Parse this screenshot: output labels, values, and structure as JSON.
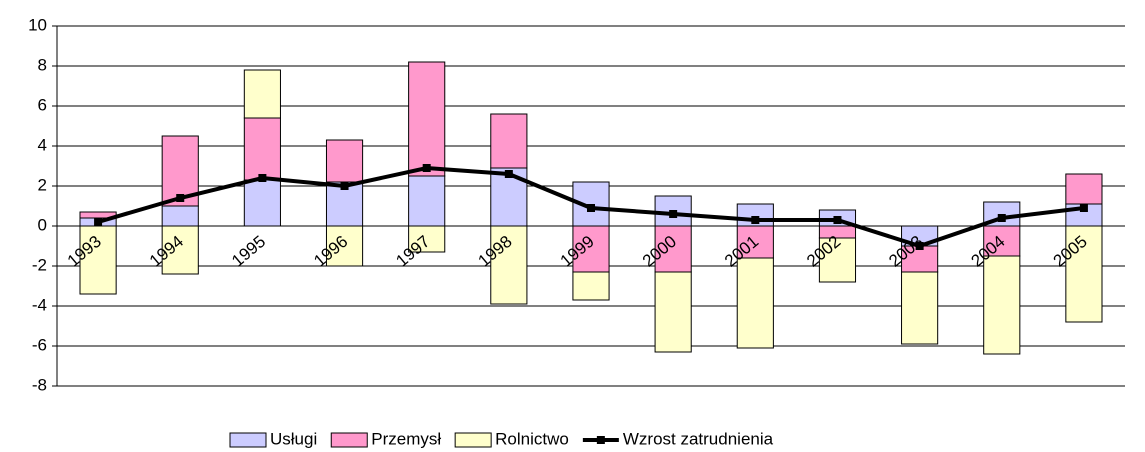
{
  "chart_data": {
    "type": "stacked_bar_line",
    "categories": [
      "1993",
      "1994",
      "1995",
      "1996",
      "1997",
      "1998",
      "1999",
      "2000",
      "2001",
      "2002",
      "2003",
      "2004",
      "2005"
    ],
    "series": [
      {
        "name": "Usługi",
        "color": "#ccccff",
        "values": [
          0.4,
          1.0,
          2.3,
          2.2,
          2.5,
          2.9,
          2.2,
          1.5,
          1.1,
          0.8,
          -1.0,
          1.2,
          1.1
        ]
      },
      {
        "name": "Przemysł",
        "color": "#ff99cc",
        "values": [
          0.3,
          3.5,
          3.1,
          2.1,
          5.7,
          2.7,
          -2.3,
          -2.3,
          -1.6,
          -0.6,
          -1.3,
          -1.5,
          1.5
        ]
      },
      {
        "name": "Rolnictwo",
        "color": "#ffffcc",
        "values": [
          -3.4,
          -2.4,
          2.4,
          -2.0,
          -1.3,
          -3.9,
          -1.4,
          -4.0,
          -4.5,
          -2.2,
          -3.6,
          -4.9,
          -4.8
        ]
      },
      {
        "name": "Wzrost zatrudnienia",
        "color": "#000000",
        "type": "line",
        "values": [
          0.2,
          1.4,
          2.4,
          2.0,
          2.9,
          2.6,
          0.9,
          0.6,
          0.3,
          0.3,
          -1.0,
          0.4,
          0.9
        ]
      }
    ],
    "ylim": [
      -8,
      10
    ],
    "yticks": [
      -8,
      -6,
      -4,
      -2,
      0,
      2,
      4,
      6,
      8,
      10
    ],
    "grid": true,
    "legend": "bottom"
  }
}
